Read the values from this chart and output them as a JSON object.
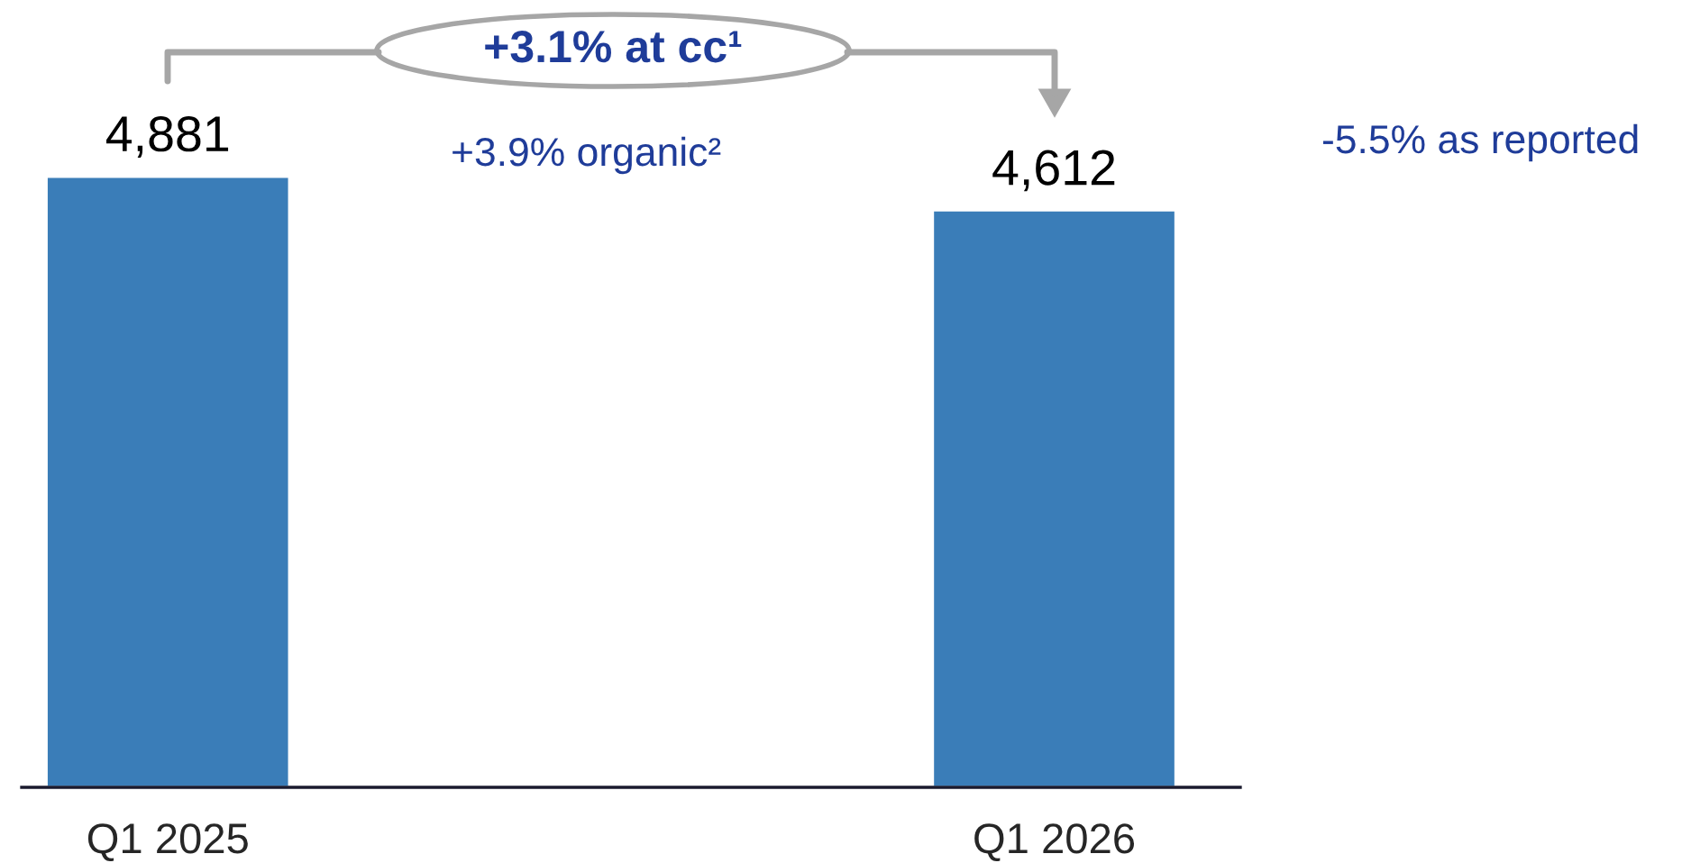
{
  "chart_data": {
    "type": "bar",
    "categories": [
      "Q1 2025",
      "Q1 2026"
    ],
    "values": [
      4881,
      4612
    ],
    "color": "#3a7db8",
    "value_labels": [
      "4,881",
      "4,612"
    ],
    "annotations": [
      "+3.1% at cc¹",
      "+3.9% organic²",
      "-5.5% as reported"
    ]
  }
}
